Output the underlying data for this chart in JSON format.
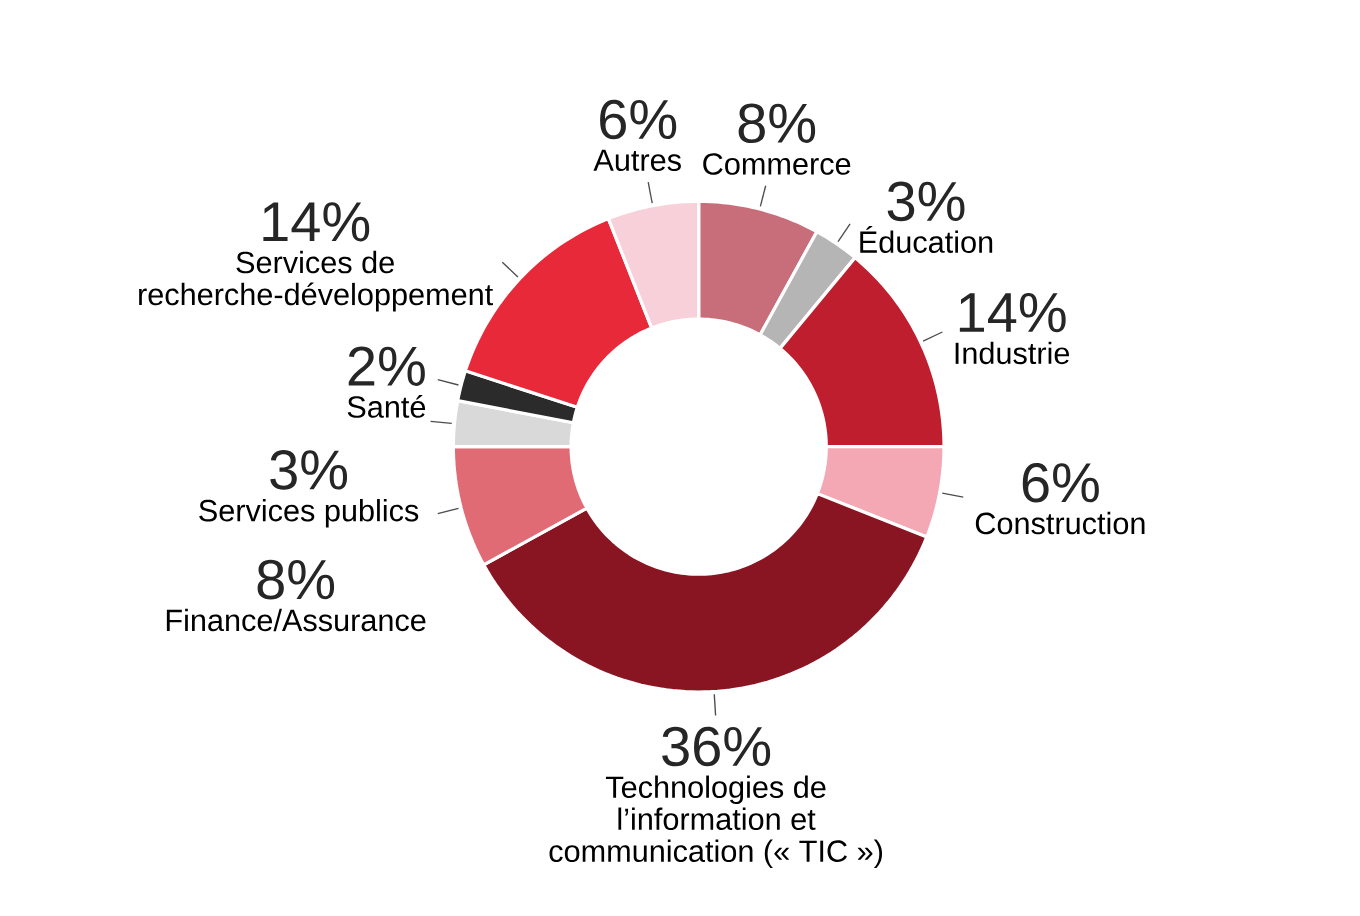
{
  "chart_data": {
    "type": "donut",
    "categories": [
      "Commerce",
      "Éducation",
      "Industrie",
      "Construction",
      "Technologies de l’information et communication (« TIC »)",
      "Finance/Assurance",
      "Services publics",
      "Santé",
      "Services de recherche-développement",
      "Autres"
    ],
    "values": [
      8,
      3,
      14,
      6,
      36,
      8,
      3,
      2,
      14,
      6
    ],
    "value_labels": [
      "8%",
      "3%",
      "14%",
      "6%",
      "36%",
      "8%",
      "3%",
      "2%",
      "14%",
      "6%"
    ],
    "colors": [
      "#c86e7a",
      "#b5b5b5",
      "#be1e2d",
      "#f4a8b3",
      "#8a1522",
      "#e06b75",
      "#d9d9d9",
      "#2b2b2b",
      "#e8293a",
      "#f8d0da"
    ]
  }
}
